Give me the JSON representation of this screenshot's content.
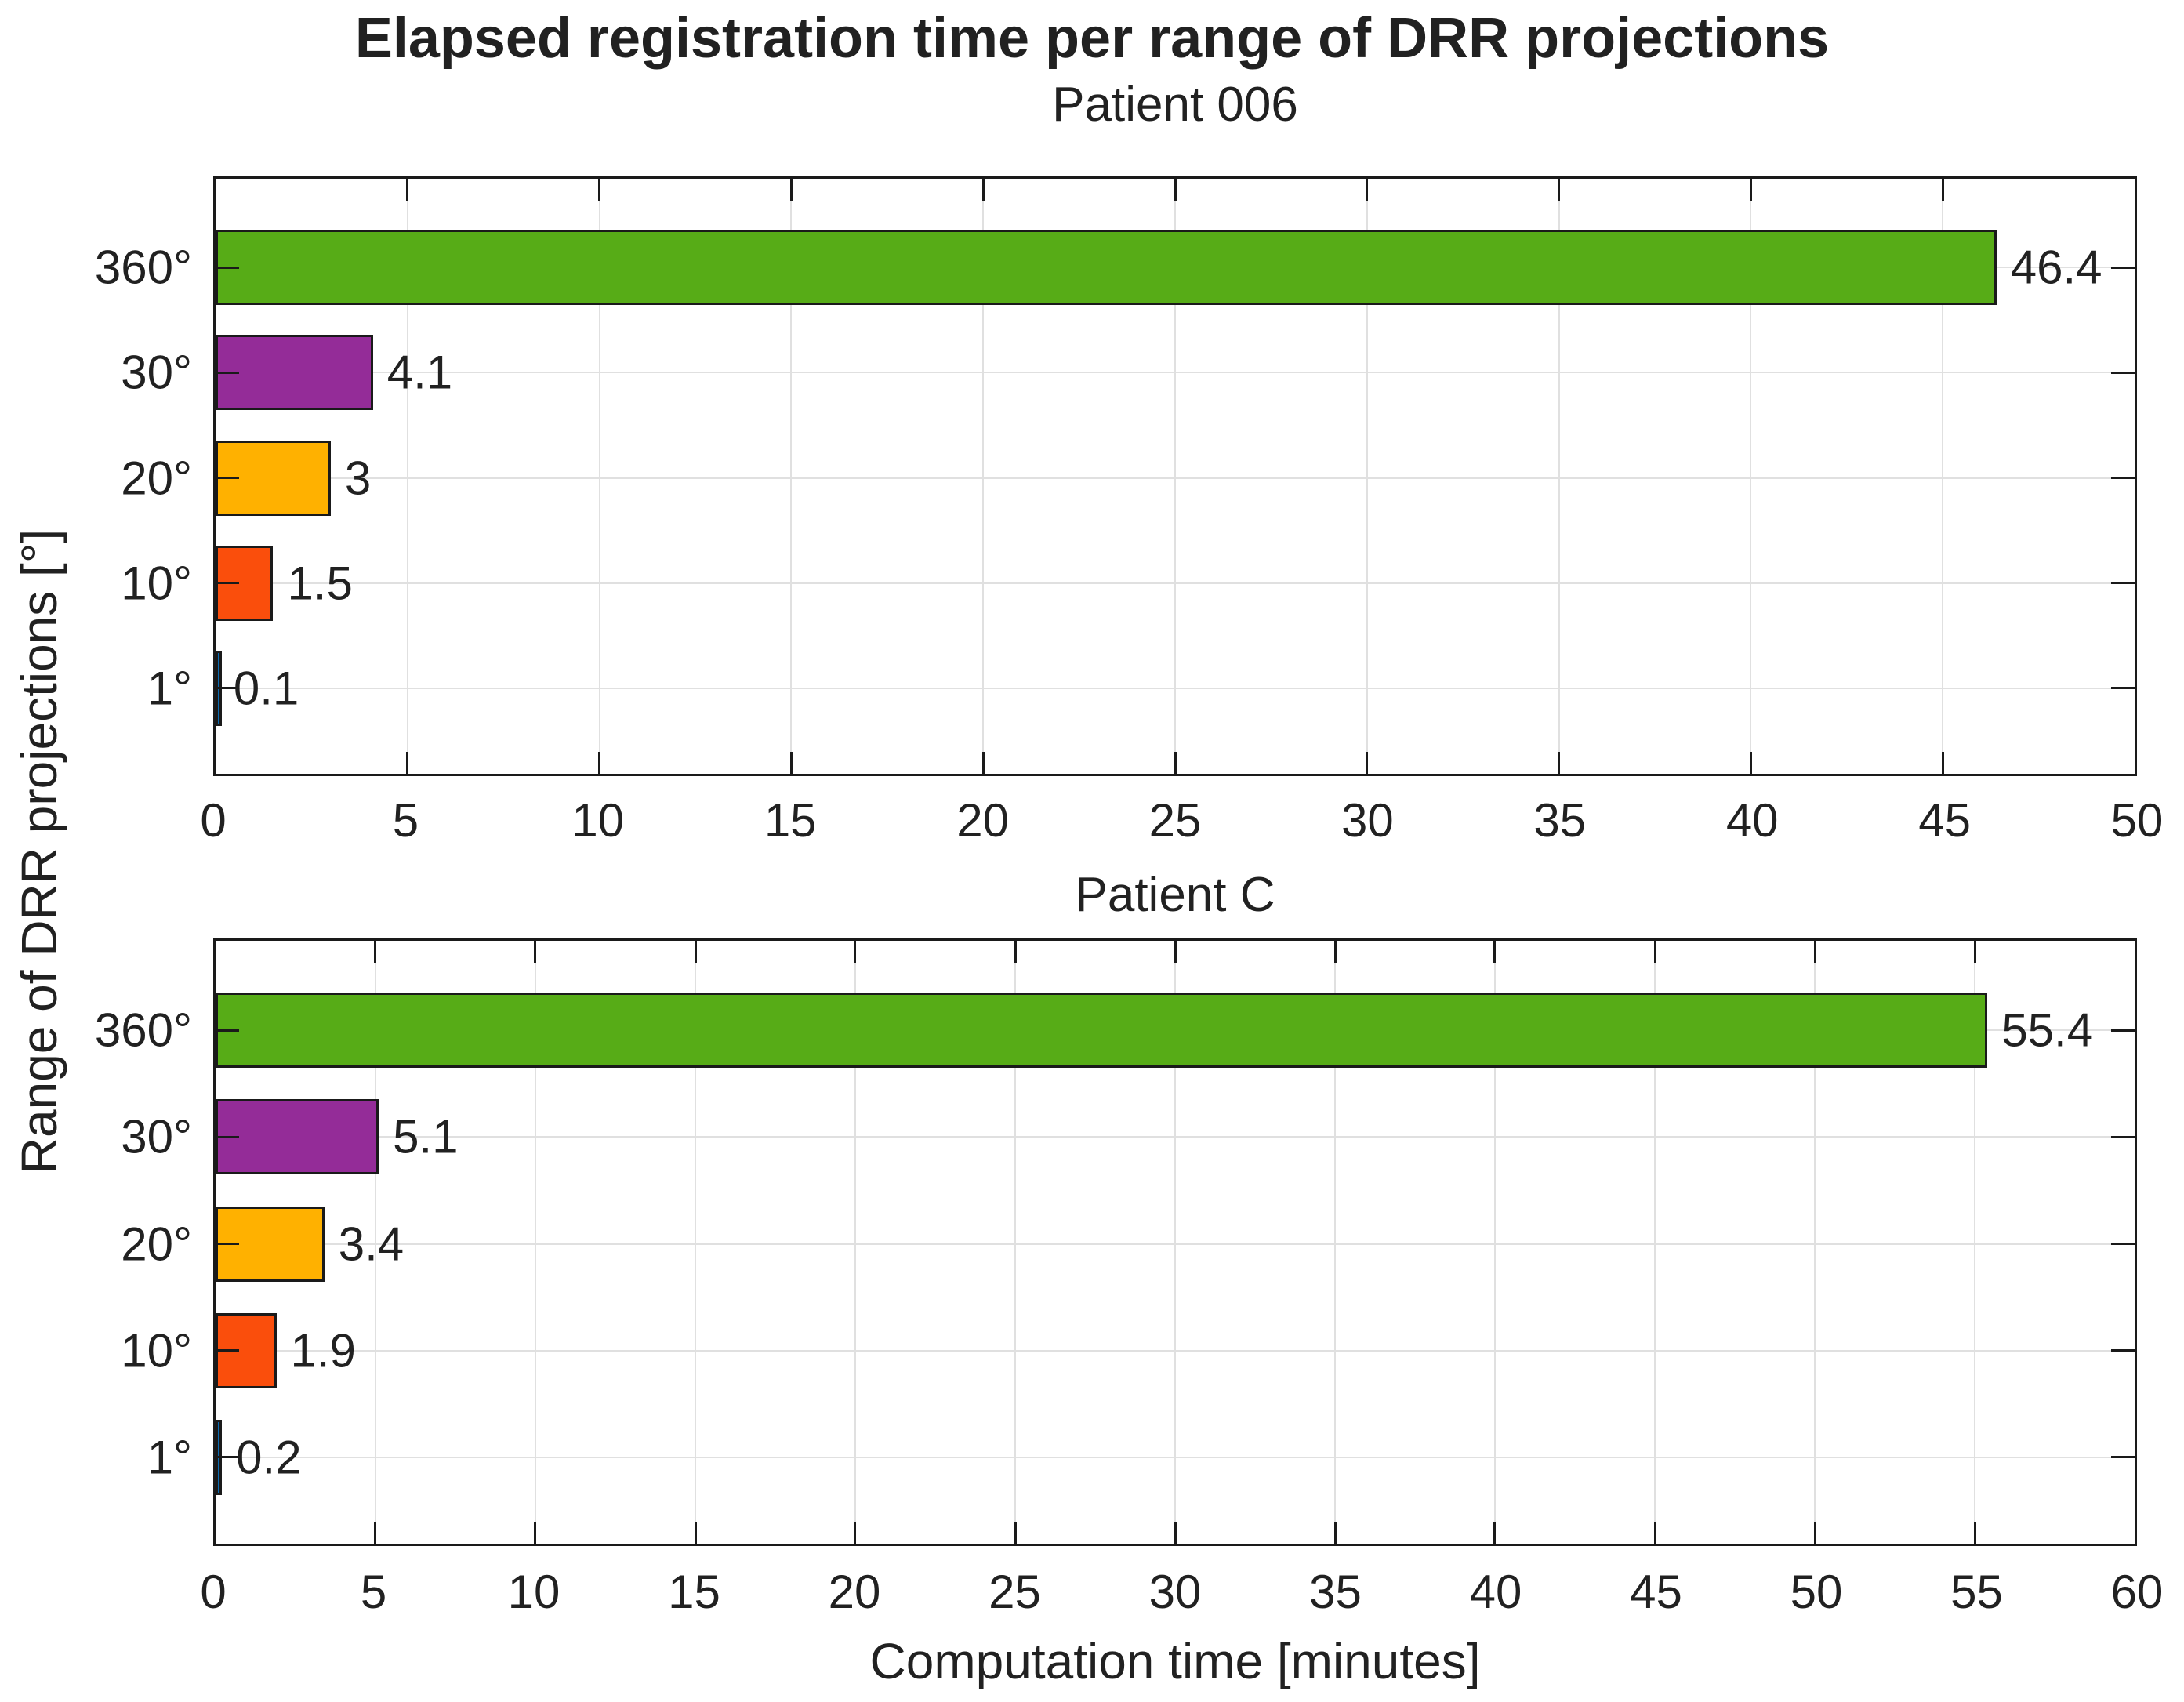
{
  "figure": {
    "title": "Elapsed registration time per range of DRR projections",
    "xlabel": "Computation time [minutes]",
    "ylabel": "Range of DRR projections [°]"
  },
  "palette": {
    "bar_colors": [
      "#57AC17",
      "#942C98",
      "#FFB100",
      "#FA4E0C",
      "#0C6BB1"
    ],
    "bar_edge": "#1A1A1A",
    "axis_color": "#1A1A1A",
    "grid_color": "#E0E0E0",
    "text_color": "#212121"
  },
  "chart_data": [
    {
      "type": "bar",
      "orientation": "horizontal",
      "title": "Patient 006",
      "categories": [
        "360°",
        "30°",
        "20°",
        "10°",
        "1°"
      ],
      "values": [
        46.4,
        4.1,
        3,
        1.5,
        0.1
      ],
      "value_labels": [
        "46.4",
        "4.1",
        "3",
        "1.5",
        "0.1"
      ],
      "xlim": [
        0,
        50
      ],
      "xticks": [
        0,
        5,
        10,
        15,
        20,
        25,
        30,
        35,
        40,
        45,
        50
      ],
      "grid": true,
      "legend": "none"
    },
    {
      "type": "bar",
      "orientation": "horizontal",
      "title": "Patient C",
      "categories": [
        "360°",
        "30°",
        "20°",
        "10°",
        "1°"
      ],
      "values": [
        55.4,
        5.1,
        3.4,
        1.9,
        0.2
      ],
      "value_labels": [
        "55.4",
        "5.1",
        "3.4",
        "1.9",
        "0.2"
      ],
      "xlim": [
        0,
        60
      ],
      "xticks": [
        0,
        5,
        10,
        15,
        20,
        25,
        30,
        35,
        40,
        45,
        50,
        55,
        60
      ],
      "grid": true,
      "legend": "none"
    }
  ]
}
